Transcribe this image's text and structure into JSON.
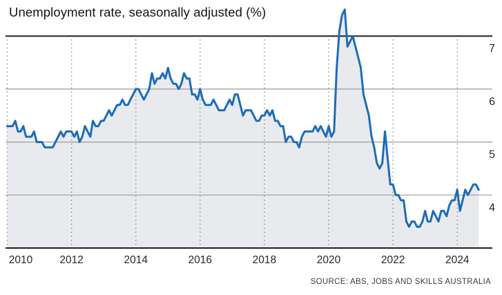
{
  "title": "Unemployment rate, seasonally adjusted (%)",
  "source": "SOURCE: ABS, JOBS AND SKILLS AUSTRALIA",
  "colors": {
    "line": "#1b6cb8",
    "area_fill": "#e9eaee",
    "grid_dark": "#222222",
    "grid_light": "#9b9b9b",
    "grid_dotted": "#8f8f8f",
    "axis_text": "#262626",
    "title_text": "#141414",
    "source_text": "#3c3c3c",
    "background": "#ffffff"
  },
  "chart_data": {
    "type": "area",
    "title": "Unemployment rate, seasonally adjusted (%)",
    "source": "SOURCE: ABS, JOBS AND SKILLS AUSTRALIA",
    "xlabel": "",
    "ylabel": "",
    "x_tick_years": [
      2010,
      2012,
      2014,
      2016,
      2018,
      2020,
      2022,
      2024
    ],
    "y_ticks": [
      4,
      5,
      6,
      7
    ],
    "y_axis_side": "right",
    "x_range": [
      2010.0,
      2024.75
    ],
    "y_range": [
      3.0,
      7.6
    ],
    "grid": "horizontal solid, vertical dotted at even years; top (7) and bottom (3) rules dark",
    "legend": "none",
    "frequency": "monthly",
    "start_year": 2010,
    "start_month": 1,
    "points_per_year": 12,
    "series": [
      {
        "name": "Unemployment rate, seasonally adjusted (%)",
        "values": [
          5.3,
          5.3,
          5.3,
          5.4,
          5.2,
          5.2,
          5.3,
          5.1,
          5.1,
          5.1,
          5.2,
          5.0,
          5.0,
          5.0,
          4.9,
          4.9,
          4.9,
          4.9,
          5.0,
          5.1,
          5.2,
          5.1,
          5.2,
          5.2,
          5.2,
          5.1,
          5.2,
          5.0,
          5.1,
          5.3,
          5.2,
          5.1,
          5.4,
          5.3,
          5.3,
          5.4,
          5.4,
          5.5,
          5.6,
          5.5,
          5.6,
          5.7,
          5.7,
          5.8,
          5.7,
          5.7,
          5.8,
          5.9,
          6.0,
          6.0,
          5.9,
          5.8,
          5.9,
          6.0,
          6.3,
          6.1,
          6.2,
          6.2,
          6.3,
          6.2,
          6.4,
          6.2,
          6.1,
          6.1,
          6.0,
          6.1,
          6.3,
          6.2,
          6.2,
          5.9,
          5.9,
          5.8,
          6.0,
          5.8,
          5.7,
          5.7,
          5.7,
          5.8,
          5.7,
          5.6,
          5.6,
          5.6,
          5.7,
          5.8,
          5.7,
          5.9,
          5.9,
          5.7,
          5.5,
          5.6,
          5.6,
          5.6,
          5.5,
          5.4,
          5.4,
          5.5,
          5.5,
          5.6,
          5.5,
          5.6,
          5.4,
          5.4,
          5.3,
          5.3,
          5.0,
          5.1,
          5.1,
          5.0,
          5.0,
          4.9,
          5.1,
          5.2,
          5.2,
          5.2,
          5.2,
          5.3,
          5.2,
          5.3,
          5.2,
          5.1,
          5.3,
          5.1,
          5.2,
          6.4,
          7.1,
          7.4,
          7.5,
          6.8,
          6.9,
          7.0,
          6.8,
          6.6,
          6.4,
          5.9,
          5.7,
          5.5,
          5.1,
          4.9,
          4.6,
          4.5,
          4.6,
          5.2,
          4.7,
          4.2,
          4.2,
          4.0,
          4.0,
          3.9,
          3.9,
          3.5,
          3.4,
          3.5,
          3.5,
          3.4,
          3.4,
          3.5,
          3.7,
          3.5,
          3.5,
          3.7,
          3.6,
          3.5,
          3.7,
          3.7,
          3.6,
          3.8,
          3.9,
          3.9,
          4.1,
          3.7,
          3.9,
          4.1,
          4.0,
          4.1,
          4.2,
          4.2,
          4.1
        ]
      }
    ]
  }
}
